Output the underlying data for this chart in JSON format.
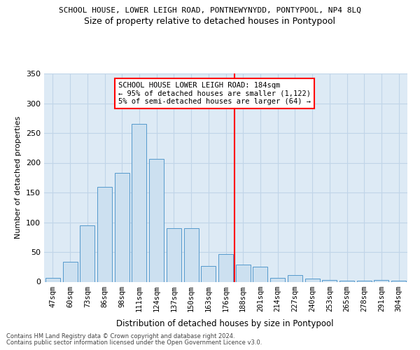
{
  "title": "SCHOOL HOUSE, LOWER LEIGH ROAD, PONTNEWYNYDD, PONTYPOOL, NP4 8LQ",
  "subtitle": "Size of property relative to detached houses in Pontypool",
  "xlabel": "Distribution of detached houses by size in Pontypool",
  "ylabel": "Number of detached properties",
  "bar_labels": [
    "47sqm",
    "60sqm",
    "73sqm",
    "86sqm",
    "98sqm",
    "111sqm",
    "124sqm",
    "137sqm",
    "150sqm",
    "163sqm",
    "176sqm",
    "188sqm",
    "201sqm",
    "214sqm",
    "227sqm",
    "240sqm",
    "253sqm",
    "265sqm",
    "278sqm",
    "291sqm",
    "304sqm"
  ],
  "bar_values": [
    6,
    34,
    95,
    160,
    183,
    265,
    207,
    90,
    90,
    27,
    46,
    29,
    25,
    7,
    11,
    5,
    3,
    2,
    2,
    3,
    2
  ],
  "bar_color": "#cce0f0",
  "bar_edge_color": "#5599cc",
  "vline_color": "red",
  "annotation_text": "SCHOOL HOUSE LOWER LEIGH ROAD: 184sqm\n← 95% of detached houses are smaller (1,122)\n5% of semi-detached houses are larger (64) →",
  "ylim": [
    0,
    350
  ],
  "yticks": [
    0,
    50,
    100,
    150,
    200,
    250,
    300,
    350
  ],
  "grid_color": "#c0d5e8",
  "bg_color": "#ddeaf5",
  "footer1": "Contains HM Land Registry data © Crown copyright and database right 2024.",
  "footer2": "Contains public sector information licensed under the Open Government Licence v3.0."
}
